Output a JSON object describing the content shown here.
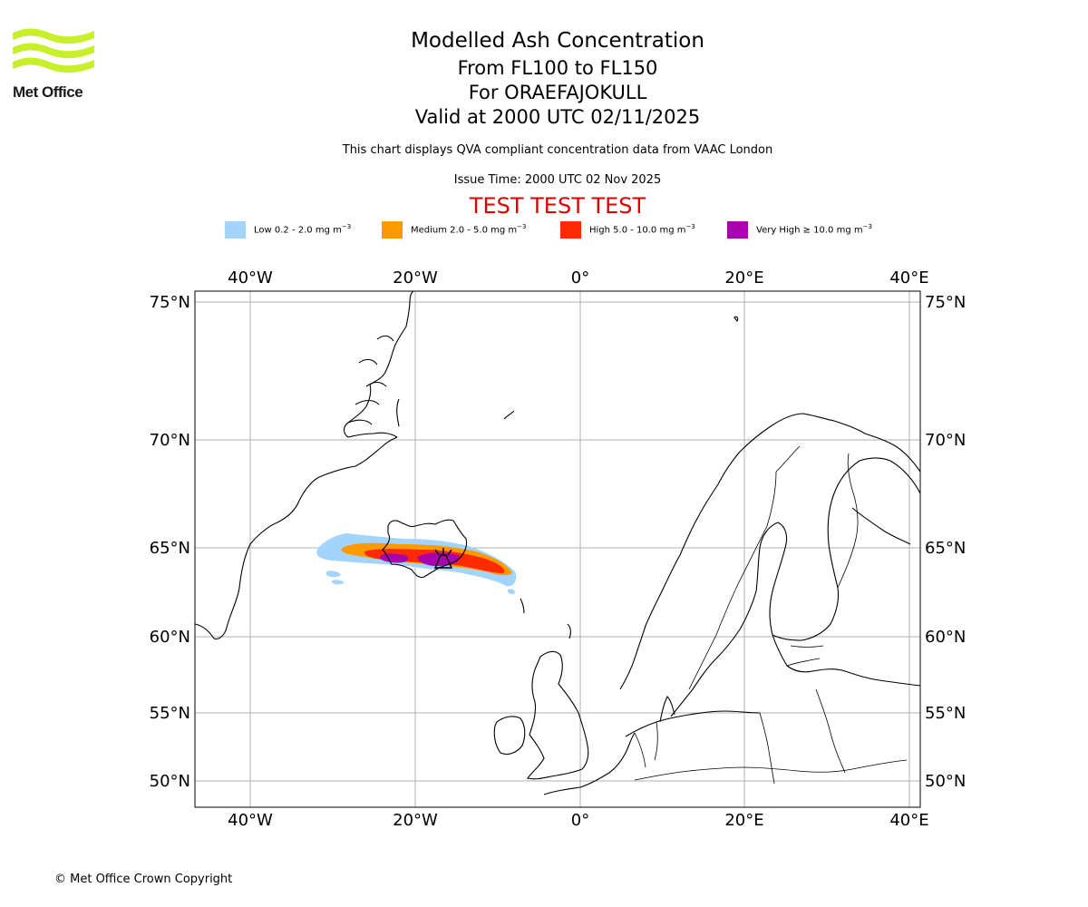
{
  "header": {
    "logo_text": "Met Office",
    "title": "Modelled Ash Concentration",
    "line1": "From FL100 to FL150",
    "line2": "For ORAEFAJOKULL",
    "line3": "Valid at 2000 UTC 02/11/2025",
    "description": "This chart displays QVA compliant concentration data from VAAC London",
    "issue_time": "Issue Time: 2000 UTC 02 Nov 2025",
    "test_banner": "TEST TEST TEST"
  },
  "legend": [
    {
      "label": "Low 0.2 - 2.0 mg m",
      "unit_exp": "−3",
      "color": "#a3d4fb"
    },
    {
      "label": "Medium 2.0 - 5.0 mg m",
      "unit_exp": "−3",
      "color": "#ff9900"
    },
    {
      "label": "High 5.0 - 10.0 mg m",
      "unit_exp": "−3",
      "color": "#ff2a00"
    },
    {
      "label": "Very High  ≥  10.0 mg m",
      "unit_exp": "−3",
      "color": "#aa00b0"
    }
  ],
  "map": {
    "lon_labels": [
      "40°W",
      "20°W",
      "0°",
      "20°E",
      "40°E"
    ],
    "lat_labels": [
      "75°N",
      "70°N",
      "65°N",
      "60°N",
      "55°N",
      "50°N"
    ],
    "volcano": "ORAEFAJOKULL",
    "grid": true
  },
  "footer": {
    "copyright": "© Met Office Crown Copyright"
  }
}
